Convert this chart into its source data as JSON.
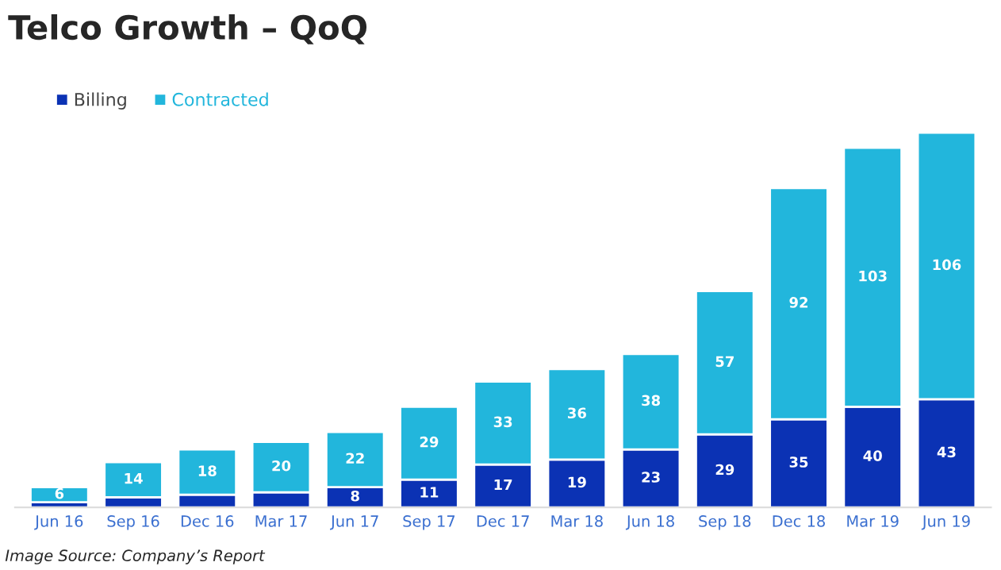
{
  "chart_data": {
    "type": "bar",
    "title": "Telco Growth – QoQ",
    "stacked": true,
    "legend": "top left",
    "grid": false,
    "categories": [
      "Jun 16",
      "Sep 16",
      "Dec 16",
      "Mar 17",
      "Jun 17",
      "Sep 17",
      "Dec 17",
      "Mar 18",
      "Jun 18",
      "Sep 18",
      "Dec 18",
      "Mar 19",
      "Jun 19"
    ],
    "series": [
      {
        "name": "Billing",
        "color": "#0b32b4",
        "values": [
          2,
          4,
          5,
          6,
          8,
          11,
          17,
          19,
          23,
          29,
          35,
          40,
          43
        ],
        "value_labels": [
          null,
          null,
          null,
          null,
          "8",
          "11",
          "17",
          "19",
          "23",
          "29",
          "35",
          "40",
          "43"
        ]
      },
      {
        "name": "Contracted",
        "color": "#22b6dc",
        "values": [
          6,
          14,
          18,
          20,
          22,
          29,
          33,
          36,
          38,
          57,
          92,
          103,
          106
        ],
        "value_labels": [
          "6",
          "14",
          "18",
          "20",
          "22",
          "29",
          "33",
          "36",
          "38",
          "57",
          "92",
          "103",
          "106"
        ]
      }
    ],
    "annotations": [
      "Image Source: Company’s Report"
    ]
  }
}
